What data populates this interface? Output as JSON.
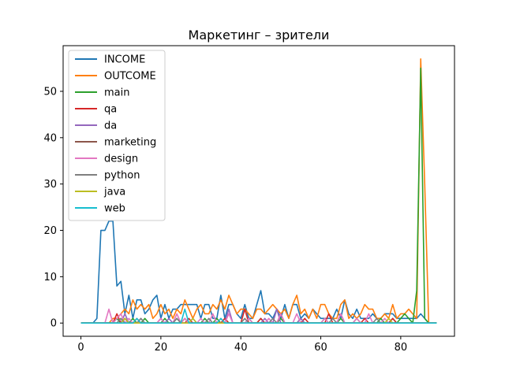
{
  "chart_data": {
    "type": "line",
    "title": "Маркетинг – зрители",
    "xlabel": "",
    "ylabel": "",
    "xlim": [
      -4.45,
      93.45
    ],
    "ylim": [
      -2.85,
      59.85
    ],
    "xticks": [
      0,
      20,
      40,
      60,
      80
    ],
    "yticks": [
      0,
      10,
      20,
      30,
      40,
      50
    ],
    "grid": false,
    "legend_position": "top-left",
    "series": [
      {
        "name": "INCOME",
        "color": "#1f77b4",
        "values": [
          0,
          0,
          0,
          0,
          1,
          20,
          20,
          22,
          22,
          8,
          9,
          2,
          6,
          1,
          5,
          5,
          2,
          3,
          5,
          6,
          1,
          4,
          1,
          3,
          3,
          4,
          4,
          4,
          4,
          4,
          1,
          4,
          4,
          1,
          1,
          6,
          1,
          4,
          4,
          2,
          1,
          4,
          1,
          1,
          4,
          7,
          2,
          2,
          1,
          3,
          1,
          4,
          1,
          4,
          4,
          1,
          2,
          1,
          3,
          2,
          1,
          1,
          1,
          1,
          3,
          1,
          5,
          2,
          1,
          3,
          1,
          1,
          1,
          2,
          1,
          1,
          2,
          2,
          2,
          1,
          1,
          1,
          1,
          1,
          1,
          2,
          1,
          0,
          0,
          0
        ]
      },
      {
        "name": "OUTCOME",
        "color": "#ff7f0e",
        "values": [
          0,
          0,
          0,
          0,
          0,
          0,
          0,
          0,
          1,
          1,
          2,
          3,
          2,
          5,
          3,
          4,
          3,
          4,
          1,
          2,
          4,
          2,
          3,
          1,
          3,
          2,
          5,
          3,
          1,
          3,
          4,
          2,
          2,
          4,
          3,
          5,
          3,
          6,
          4,
          2,
          3,
          3,
          2,
          1,
          3,
          3,
          2,
          3,
          4,
          3,
          2,
          3,
          1,
          4,
          6,
          2,
          3,
          1,
          3,
          1,
          4,
          4,
          2,
          1,
          1,
          4,
          5,
          1,
          2,
          1,
          2,
          4,
          3,
          3,
          1,
          1,
          2,
          1,
          4,
          1,
          2,
          2,
          3,
          2,
          1,
          57,
          30,
          0,
          0,
          0
        ]
      },
      {
        "name": "main",
        "color": "#2ca02c",
        "values": [
          0,
          0,
          0,
          0,
          0,
          0,
          0,
          0,
          0,
          1,
          0,
          1,
          0,
          1,
          0,
          0,
          1,
          0,
          0,
          0,
          0,
          1,
          0,
          0,
          1,
          0,
          1,
          0,
          0,
          0,
          0,
          1,
          0,
          0,
          1,
          0,
          1,
          0,
          0,
          0,
          0,
          0,
          1,
          0,
          0,
          1,
          0,
          0,
          0,
          0,
          1,
          0,
          0,
          0,
          0,
          1,
          0,
          0,
          0,
          0,
          0,
          1,
          0,
          0,
          0,
          1,
          0,
          0,
          0,
          1,
          0,
          0,
          0,
          0,
          0,
          1,
          0,
          0,
          1,
          0,
          1,
          2,
          1,
          0,
          7,
          55,
          1,
          0,
          0,
          0
        ]
      },
      {
        "name": "qa",
        "color": "#d62728",
        "values": [
          0,
          0,
          0,
          0,
          0,
          0,
          0,
          0,
          0,
          2,
          0,
          1,
          0,
          0,
          1,
          0,
          0,
          0,
          0,
          0,
          1,
          0,
          0,
          0,
          0,
          0,
          0,
          1,
          0,
          0,
          0,
          0,
          0,
          0,
          0,
          0,
          1,
          0,
          0,
          0,
          0,
          3,
          0,
          0,
          0,
          1,
          0,
          0,
          0,
          0,
          2,
          0,
          0,
          0,
          0,
          0,
          1,
          0,
          0,
          0,
          0,
          0,
          2,
          0,
          0,
          0,
          0,
          0,
          0,
          0,
          0,
          1,
          0,
          0,
          0,
          0,
          0,
          0,
          1,
          0,
          0,
          0,
          0,
          0,
          0,
          0,
          0,
          0,
          0,
          0
        ]
      },
      {
        "name": "da",
        "color": "#9467bd",
        "values": [
          0,
          0,
          0,
          0,
          0,
          0,
          0,
          0,
          0,
          0,
          0,
          2,
          0,
          0,
          0,
          1,
          0,
          0,
          0,
          0,
          0,
          0,
          1,
          0,
          0,
          0,
          0,
          0,
          1,
          0,
          0,
          0,
          0,
          0,
          0,
          0,
          0,
          3,
          0,
          0,
          0,
          0,
          0,
          0,
          0,
          0,
          1,
          0,
          0,
          3,
          0,
          0,
          0,
          0,
          0,
          1,
          0,
          0,
          0,
          0,
          0,
          0,
          0,
          0,
          0,
          2,
          0,
          0,
          0,
          0,
          0,
          0,
          0,
          0,
          0,
          0,
          0,
          0,
          0,
          0,
          0,
          0,
          0,
          0,
          0,
          0,
          0,
          0,
          0,
          0
        ]
      },
      {
        "name": "marketing",
        "color": "#8c564b",
        "values": [
          0,
          0,
          0,
          0,
          0,
          0,
          0,
          0,
          0,
          0,
          1,
          0,
          0,
          0,
          0,
          0,
          0,
          0,
          0,
          0,
          0,
          0,
          0,
          0,
          0,
          0,
          0,
          0,
          0,
          0,
          0,
          0,
          0,
          0,
          0,
          0,
          0,
          0,
          0,
          0,
          0,
          0,
          0,
          0,
          0,
          0,
          0,
          0,
          0,
          0,
          0,
          0,
          0,
          0,
          0,
          0,
          0,
          0,
          0,
          0,
          0,
          0,
          0,
          0,
          0,
          0,
          0,
          0,
          0,
          0,
          0,
          0,
          0,
          0,
          0,
          0,
          0,
          0,
          0,
          0,
          0,
          0,
          0,
          0,
          0,
          0,
          0,
          0,
          0,
          0
        ]
      },
      {
        "name": "design",
        "color": "#e377c2",
        "values": [
          0,
          0,
          0,
          0,
          0,
          0,
          0,
          3,
          0,
          1,
          2,
          0,
          1,
          0,
          1,
          0,
          0,
          0,
          0,
          0,
          1,
          0,
          0,
          0,
          2,
          0,
          1,
          0,
          0,
          0,
          1,
          0,
          0,
          2,
          0,
          1,
          0,
          2,
          0,
          0,
          0,
          0,
          1,
          0,
          0,
          0,
          0,
          1,
          0,
          0,
          2,
          0,
          0,
          0,
          2,
          0,
          0,
          0,
          0,
          0,
          0,
          1,
          0,
          0,
          0,
          2,
          0,
          0,
          0,
          1,
          0,
          0,
          2,
          0,
          0,
          0,
          1,
          0,
          0,
          0,
          0,
          0,
          0,
          0,
          0,
          0,
          0,
          0,
          0,
          0
        ]
      },
      {
        "name": "python",
        "color": "#7f7f7f",
        "values": [
          0,
          0,
          0,
          0,
          0,
          0,
          0,
          0,
          0,
          0,
          1,
          0,
          0,
          0,
          0,
          1,
          0,
          0,
          0,
          0,
          0,
          0,
          0,
          0,
          1,
          0,
          0,
          0,
          0,
          0,
          0,
          0,
          1,
          0,
          0,
          0,
          0,
          0,
          0,
          0,
          0,
          1,
          0,
          0,
          0,
          0,
          0,
          0,
          1,
          0,
          0,
          0,
          0,
          0,
          0,
          0,
          0,
          0,
          0,
          0,
          0,
          0,
          0,
          1,
          0,
          0,
          0,
          0,
          0,
          0,
          0,
          0,
          0,
          0,
          1,
          0,
          0,
          0,
          0,
          0,
          0,
          0,
          0,
          0,
          0,
          0,
          0,
          0,
          0,
          0
        ]
      },
      {
        "name": "java",
        "color": "#bcbd22",
        "values": [
          0,
          0,
          0,
          0,
          0,
          0,
          0,
          0,
          0,
          0,
          0,
          1,
          0,
          0,
          0,
          0,
          0,
          0,
          0,
          0,
          0,
          0,
          0,
          0,
          0,
          0,
          0,
          0,
          1,
          0,
          0,
          0,
          0,
          0,
          0,
          0,
          0,
          0,
          0,
          0,
          0,
          0,
          0,
          0,
          0,
          0,
          0,
          0,
          0,
          0,
          0,
          0,
          0,
          0,
          0,
          0,
          0,
          0,
          0,
          0,
          0,
          0,
          0,
          0,
          0,
          0,
          0,
          0,
          0,
          0,
          0,
          0,
          0,
          0,
          0,
          0,
          0,
          1,
          0,
          0,
          0,
          0,
          0,
          0,
          0,
          0,
          0,
          0,
          0,
          0
        ]
      },
      {
        "name": "web",
        "color": "#17becf",
        "values": [
          0,
          0,
          0,
          0,
          0,
          0,
          0,
          0,
          0,
          0,
          0,
          0,
          0,
          0,
          1,
          0,
          0,
          0,
          0,
          0,
          0,
          0,
          0,
          0,
          0,
          0,
          3,
          0,
          0,
          0,
          0,
          0,
          0,
          0,
          0,
          1,
          0,
          0,
          0,
          0,
          0,
          0,
          0,
          0,
          0,
          0,
          0,
          0,
          0,
          0,
          0,
          0,
          0,
          0,
          0,
          0,
          0,
          0,
          0,
          0,
          0,
          0,
          0,
          0,
          0,
          0,
          0,
          0,
          0,
          0,
          0,
          0,
          0,
          0,
          0,
          0,
          0,
          0,
          0,
          0,
          0,
          0,
          0,
          0,
          0,
          0,
          0,
          0,
          0,
          0
        ]
      }
    ]
  }
}
